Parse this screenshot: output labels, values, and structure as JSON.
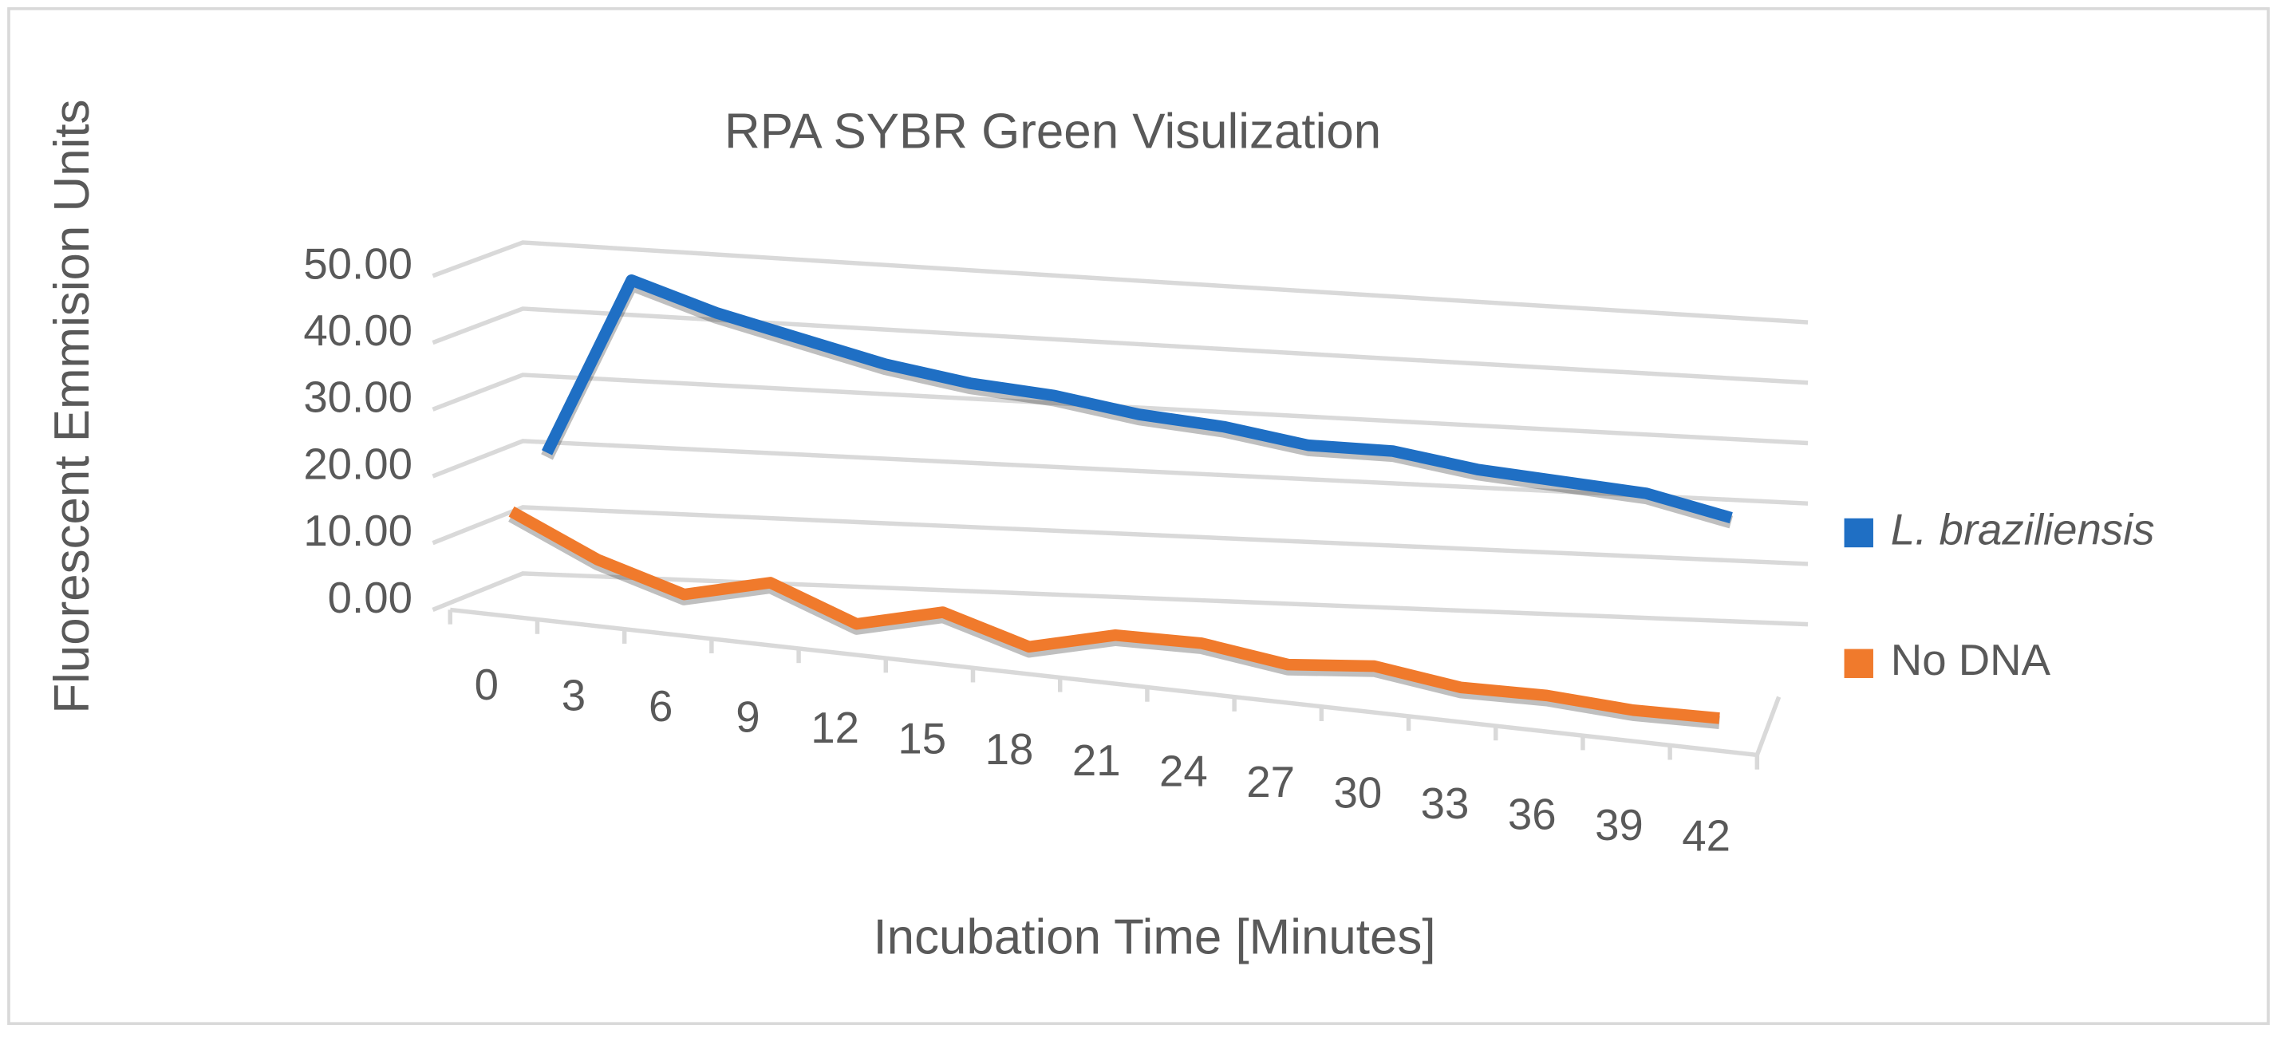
{
  "chart_data": {
    "type": "line3d",
    "title": "RPA SYBR Green Visulization",
    "x_label": "Incubation Time [Minutes]",
    "y_label": "Fluorescent Emmision Units",
    "categories": [
      "0",
      "3",
      "6",
      "9",
      "12",
      "15",
      "18",
      "21",
      "24",
      "27",
      "30",
      "33",
      "36",
      "39",
      "42"
    ],
    "series": [
      {
        "name": "L. braziliensis",
        "color": "#1f6fc4",
        "values": [
          20,
          47,
          43,
          40,
          37,
          35,
          34,
          32,
          31,
          29,
          29,
          27,
          26,
          25,
          22
        ]
      },
      {
        "name": "No DNA",
        "color": "#f07a2c",
        "values": [
          14,
          8,
          4,
          7,
          2,
          5,
          1,
          4,
          4,
          2,
          3,
          1,
          1,
          0,
          0
        ]
      }
    ],
    "ylim": [
      0,
      50
    ],
    "yticks": [
      {
        "value": 0,
        "label": "0.00"
      },
      {
        "value": 10,
        "label": "10.00"
      },
      {
        "value": 20,
        "label": "20.00"
      },
      {
        "value": 30,
        "label": "30.00"
      },
      {
        "value": 40,
        "label": "40.00"
      },
      {
        "value": 50,
        "label": "50.00"
      }
    ],
    "grid": true,
    "legend": "right"
  }
}
